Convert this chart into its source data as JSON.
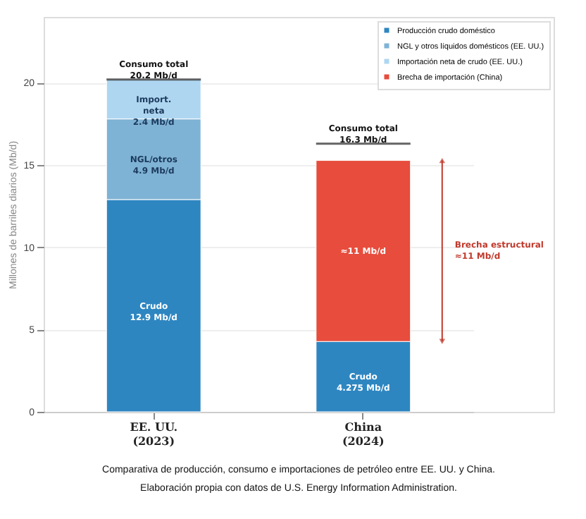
{
  "chart_data": {
    "type": "bar",
    "stacked": true,
    "categories": [
      "EE. UU.\n(2023)",
      "China\n(2024)"
    ],
    "series": [
      {
        "name": "Producción crudo doméstico",
        "color": "#2e86c1",
        "values": [
          12.9,
          4.275
        ],
        "value_labels": [
          "Crudo\n12.9 Mb/d",
          "Crudo\n4.275 Mb/d"
        ]
      },
      {
        "name": "NGL y otros líquidos domésticos (EE. UU.)",
        "color": "#7fb3d5",
        "values": [
          4.9,
          null
        ],
        "value_labels": [
          "NGL/otros\n4.9 Mb/d",
          null
        ]
      },
      {
        "name": "Importación neta de crudo (EE. UU.)",
        "color": "#aed6f1",
        "values": [
          2.4,
          null
        ],
        "value_labels": [
          "Import.\nneta\n2.4 Mb/d",
          null
        ]
      },
      {
        "name": "Brecha de importación (China)",
        "color": "#e74c3c",
        "values": [
          null,
          11
        ],
        "value_labels": [
          null,
          "≈11 Mb/d"
        ]
      }
    ],
    "ylabel": "Millones de barriles diarios (Mb/d)",
    "ylim": [
      0,
      24
    ],
    "yticks": [
      0,
      5,
      10,
      15,
      20
    ],
    "grid": "y",
    "legend": "top right",
    "ref_lines": [
      {
        "axis": "y",
        "value": 20.2,
        "label": "Consumo total\n20.2 Mb/d",
        "color": "#222222"
      },
      {
        "axis": "y",
        "value": 16.3,
        "label": "Consumo total\n16.3 Mb/d",
        "color": "#222222"
      }
    ],
    "annotations": [
      "Brecha estructural\n≈11 Mb/d",
      "Comparativa de producción, consumo e importaciones de petróleo entre EE. UU. y China.",
      "Elaboración propia con datos de U.S. Energy Information Administration."
    ]
  }
}
